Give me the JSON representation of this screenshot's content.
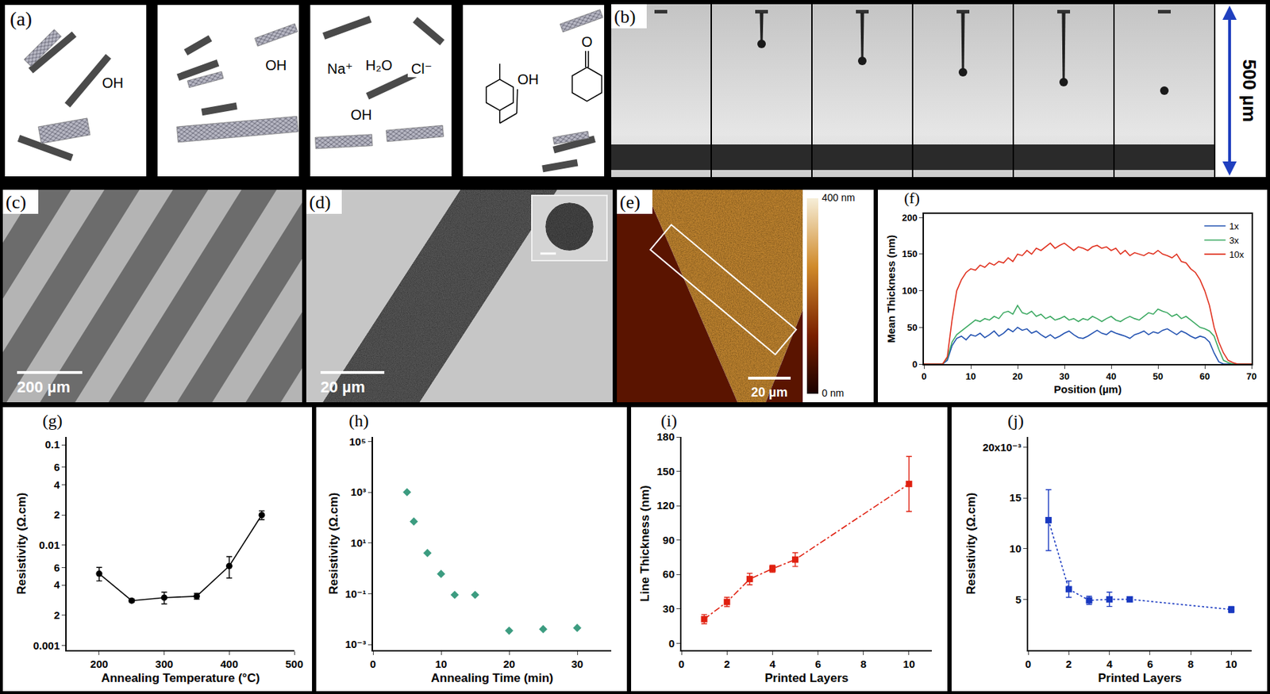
{
  "image_panels": [
    {
      "label": "(a)",
      "boxes": [
        {
          "texts": [
            "OH"
          ]
        },
        {
          "texts": [
            "OH"
          ]
        },
        {
          "texts": [
            "Na⁺",
            "H₂O",
            "Cl⁻",
            "OH"
          ]
        },
        {
          "texts": [
            "OH",
            "O"
          ]
        }
      ]
    },
    {
      "label": "(b)",
      "frames": 6,
      "scale_bar": "500 µm"
    },
    {
      "label": "(c)",
      "scale_bar": "200 µm"
    },
    {
      "label": "(d)",
      "scale_bar": "20 µm"
    },
    {
      "label": "(e)",
      "scale_bar": "20 µm",
      "colorbar": {
        "range": [
          0,
          400
        ],
        "ticks": [
          {
            "value": 400,
            "label": "400 nm"
          },
          {
            "value": 0,
            "label": "0 nm"
          }
        ]
      }
    }
  ],
  "chart_data": [
    {
      "label": "(f)",
      "type": "line",
      "xlabel": "Position (µm)",
      "ylabel": "Mean Thickness (nm)",
      "x": [
        0,
        1,
        2,
        3,
        4,
        5,
        6,
        7,
        8,
        9,
        10,
        11,
        12,
        13,
        14,
        15,
        16,
        17,
        18,
        19,
        20,
        21,
        22,
        23,
        24,
        25,
        26,
        27,
        28,
        29,
        30,
        31,
        32,
        33,
        34,
        35,
        36,
        37,
        38,
        39,
        40,
        41,
        42,
        43,
        44,
        45,
        46,
        47,
        48,
        49,
        50,
        51,
        52,
        53,
        54,
        55,
        56,
        57,
        58,
        59,
        60,
        61,
        62,
        63,
        64,
        65,
        66,
        67,
        68,
        69,
        70
      ],
      "xlim": [
        0,
        70
      ],
      "xticks": [
        0,
        10,
        20,
        30,
        40,
        50,
        60,
        70
      ],
      "ylim": [
        0,
        205
      ],
      "yticks": [
        0,
        50,
        100,
        150,
        200
      ],
      "legend": "upper right",
      "series": [
        {
          "name": "1x",
          "color": "#2050b0",
          "values": [
            0,
            0,
            0,
            0,
            0,
            5,
            25,
            35,
            38,
            33,
            40,
            38,
            42,
            36,
            40,
            45,
            38,
            42,
            48,
            44,
            50,
            46,
            48,
            42,
            45,
            40,
            36,
            40,
            35,
            38,
            42,
            45,
            40,
            36,
            35,
            38,
            42,
            46,
            42,
            40,
            45,
            42,
            40,
            38,
            35,
            40,
            42,
            45,
            40,
            44,
            42,
            46,
            48,
            44,
            40,
            45,
            42,
            38,
            35,
            38,
            36,
            30,
            15,
            3,
            0,
            0,
            0,
            0,
            0,
            0,
            0
          ]
        },
        {
          "name": "3x",
          "color": "#3aa860",
          "values": [
            0,
            0,
            0,
            0,
            0,
            8,
            30,
            40,
            45,
            50,
            55,
            60,
            58,
            62,
            60,
            65,
            62,
            70,
            72,
            68,
            80,
            70,
            68,
            72,
            65,
            68,
            62,
            65,
            60,
            62,
            65,
            60,
            62,
            58,
            62,
            60,
            65,
            62,
            58,
            62,
            65,
            60,
            58,
            62,
            65,
            62,
            60,
            65,
            70,
            68,
            75,
            72,
            70,
            65,
            68,
            62,
            65,
            60,
            55,
            50,
            48,
            45,
            38,
            20,
            5,
            2,
            0,
            0,
            0,
            0,
            0
          ]
        },
        {
          "name": "10x",
          "color": "#e0301e",
          "values": [
            0,
            0,
            0,
            0,
            0,
            10,
            60,
            100,
            115,
            125,
            130,
            128,
            135,
            132,
            138,
            135,
            140,
            138,
            145,
            140,
            150,
            148,
            155,
            150,
            158,
            155,
            160,
            165,
            158,
            162,
            165,
            160,
            155,
            160,
            158,
            155,
            160,
            162,
            158,
            160,
            155,
            158,
            150,
            155,
            148,
            152,
            150,
            148,
            152,
            150,
            155,
            150,
            148,
            145,
            150,
            140,
            138,
            130,
            125,
            115,
            100,
            80,
            50,
            30,
            15,
            5,
            2,
            0,
            0,
            0,
            0
          ]
        }
      ]
    },
    {
      "label": "(g)",
      "type": "line",
      "marker": "circle",
      "xlabel": "Annealing Temperature (°C)",
      "ylabel": "Resistivity (Ω.cm)",
      "log": "y",
      "x": [
        200,
        250,
        300,
        350,
        400,
        450
      ],
      "xlim": [
        150,
        500
      ],
      "xticks": [
        200,
        300,
        400,
        500
      ],
      "ylim": [
        0.0009,
        0.12
      ],
      "yticks": [
        0.001,
        {
          "value": 0.002,
          "label": "2"
        },
        {
          "value": 0.004,
          "label": "4"
        },
        {
          "value": 0.006,
          "label": "6"
        },
        0.01,
        {
          "value": 0.02,
          "label": "2"
        },
        {
          "value": 0.04,
          "label": "4"
        },
        {
          "value": 0.06,
          "label": "6"
        },
        0.1
      ],
      "series": [
        {
          "color": "#000000",
          "values": [
            0.0052,
            0.0028,
            0.003,
            0.0031,
            0.0062,
            0.02
          ],
          "errors": [
            0.0008,
            0.0001,
            0.0004,
            0.0002,
            0.0015,
            0.002
          ]
        }
      ]
    },
    {
      "label": "(h)",
      "type": "scatter",
      "marker": "diamond",
      "xlabel": "Annealing Time (min)",
      "ylabel": "Resistivity (Ω.cm)",
      "log": "y",
      "x": [
        5,
        6,
        8,
        10,
        12,
        15,
        20,
        25,
        30
      ],
      "xlim": [
        0,
        35
      ],
      "xticks": [
        0,
        10,
        20,
        30
      ],
      "ylim": [
        0.0006,
        150000
      ],
      "yticks": [
        {
          "value": 0.001,
          "label": "10⁻³"
        },
        {
          "value": 0.1,
          "label": "10⁻¹"
        },
        {
          "value": 10,
          "label": "10¹"
        },
        {
          "value": 1000,
          "label": "10³"
        },
        {
          "value": 100000,
          "label": "10⁵"
        }
      ],
      "series": [
        {
          "color": "#3c9c80",
          "values": [
            1000,
            70,
            4,
            0.6,
            0.09,
            0.09,
            0.0035,
            0.004,
            0.0045
          ]
        }
      ]
    },
    {
      "label": "(i)",
      "type": "line",
      "marker": "square",
      "line_style": "dashdot",
      "xlabel": "Printed Layers",
      "ylabel": "Line Thickness (nm)",
      "x": [
        1,
        2,
        3,
        4,
        5,
        10
      ],
      "xlim": [
        0,
        11
      ],
      "xticks": [
        0,
        2,
        4,
        6,
        8,
        10
      ],
      "ylim": [
        -6,
        180
      ],
      "yticks": [
        0,
        30,
        60,
        90,
        120,
        150,
        180
      ],
      "series": [
        {
          "color": "#e02010",
          "values": [
            21,
            36,
            56,
            65,
            73,
            139
          ],
          "errors": [
            4,
            4,
            5,
            3,
            6,
            24
          ]
        }
      ]
    },
    {
      "label": "(j)",
      "type": "line",
      "marker": "square",
      "line_style": "dotted",
      "xlabel": "Printed Layers",
      "ylabel": "Resistivity (Ω.cm)",
      "x": [
        1,
        2,
        3,
        4,
        5,
        10
      ],
      "xlim": [
        0,
        11
      ],
      "xticks": [
        0,
        2,
        4,
        6,
        8,
        10
      ],
      "ylim": [
        0,
        0.021
      ],
      "yticks": [
        {
          "value": 0.005,
          "label": "5"
        },
        {
          "value": 0.01,
          "label": "10"
        },
        {
          "value": 0.015,
          "label": "15"
        },
        {
          "value": 0.02,
          "label": "20x10⁻³"
        }
      ],
      "series": [
        {
          "color": "#1838c0",
          "values": [
            0.0128,
            0.006,
            0.0049,
            0.005,
            0.005,
            0.004
          ],
          "errors": [
            0.003,
            0.0008,
            0.0004,
            0.0007,
            0.0002,
            0.0003
          ]
        }
      ]
    }
  ]
}
